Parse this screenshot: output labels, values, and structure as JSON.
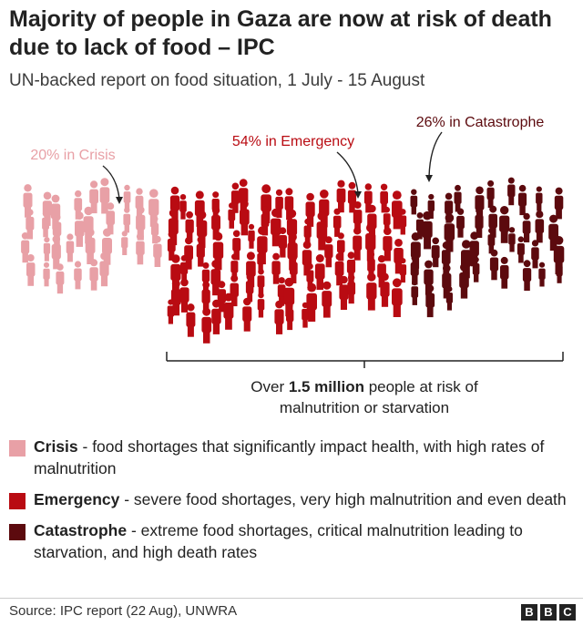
{
  "title": "Majority of people in Gaza are now at risk of death due to lack of food – IPC",
  "subtitle": "UN-backed report on food situation, 1 July - 15 August",
  "chart_data": {
    "type": "pictogram",
    "total_label_pre": "Over ",
    "total_label_bold": "1.5 million",
    "total_label_post": " people at risk of",
    "total_label_line2": "malnutrition or starvation",
    "series": [
      {
        "name": "Crisis",
        "percent": 20,
        "label": "20% in Crisis",
        "color": "#e8a0a6"
      },
      {
        "name": "Emergency",
        "percent": 54,
        "label": "54% in Emergency",
        "color": "#b90b12"
      },
      {
        "name": "Catastrophe",
        "percent": 26,
        "label": "26% in Catastrophe",
        "color": "#5c0a0e"
      }
    ]
  },
  "legend": [
    {
      "name": "Crisis",
      "desc": " - food shortages that significantly impact health, with high rates of malnutrition",
      "color": "#e8a0a6"
    },
    {
      "name": "Emergency",
      "desc": " - severe food shortages, very high malnutrition and even death",
      "color": "#b90b12"
    },
    {
      "name": "Catastrophe",
      "desc": " - extreme food shortages, critical malnutrition leading to starvation, and high death rates",
      "color": "#5c0a0e"
    }
  ],
  "footer": {
    "source": "Source: IPC report (22 Aug), UNWRA",
    "logo": [
      "B",
      "B",
      "C"
    ]
  }
}
